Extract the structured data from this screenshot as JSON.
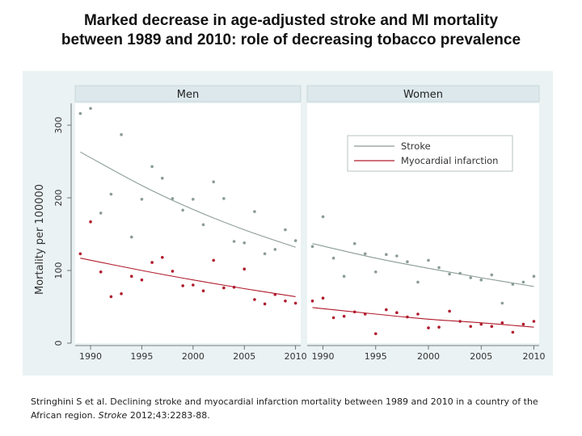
{
  "title": {
    "line1": "Marked decrease in age-adjusted stroke and MI mortality",
    "line2": "between 1989 and 2010: role of decreasing tobacco prevalence"
  },
  "citation": {
    "authors": "Stringhini S et al. Declining stroke and myocardial infarction mortality between 1989 and 2010 in a country of the African region.",
    "journal": "Stroke",
    "ref": "2012;43:2283-88."
  },
  "colors": {
    "stroke": "#8a9c98",
    "mi": "#b01a2c",
    "panel_background": "#eaf2f3",
    "strip_background": "#dce8ec",
    "plot_background": "#ffffff"
  },
  "chart_data": {
    "type": "scatter",
    "ylabel": "Mortality per 100000",
    "xlim": [
      1988.5,
      2010.5
    ],
    "ylim": [
      0,
      330
    ],
    "x_ticks": [
      1990,
      1995,
      2000,
      2005,
      2010
    ],
    "y_ticks": [
      0,
      100,
      200,
      300
    ],
    "grid": false,
    "legend": {
      "position": "top-right of Women panel",
      "entries": [
        "Stroke",
        "Myocardial infarction"
      ]
    },
    "panels": [
      {
        "name": "Men",
        "series": [
          {
            "name": "Stroke",
            "points": [
              [
                1989,
                316
              ],
              [
                1990,
                323
              ],
              [
                1991,
                179
              ],
              [
                1992,
                205
              ],
              [
                1993,
                287
              ],
              [
                1994,
                146
              ],
              [
                1995,
                198
              ],
              [
                1996,
                243
              ],
              [
                1997,
                227
              ],
              [
                1998,
                199
              ],
              [
                1999,
                183
              ],
              [
                2000,
                198
              ],
              [
                2001,
                163
              ],
              [
                2002,
                222
              ],
              [
                2003,
                199
              ],
              [
                2004,
                140
              ],
              [
                2005,
                138
              ],
              [
                2006,
                181
              ],
              [
                2007,
                123
              ],
              [
                2008,
                129
              ],
              [
                2009,
                156
              ],
              [
                2010,
                141
              ]
            ],
            "trend": [
              [
                1989,
                263
              ],
              [
                1995,
                217
              ],
              [
                2000,
                184
              ],
              [
                2005,
                156
              ],
              [
                2010,
                132
              ]
            ]
          },
          {
            "name": "Myocardial infarction",
            "points": [
              [
                1989,
                123
              ],
              [
                1990,
                167
              ],
              [
                1991,
                98
              ],
              [
                1992,
                64
              ],
              [
                1993,
                68
              ],
              [
                1994,
                92
              ],
              [
                1995,
                87
              ],
              [
                1996,
                111
              ],
              [
                1997,
                118
              ],
              [
                1998,
                99
              ],
              [
                1999,
                79
              ],
              [
                2000,
                80
              ],
              [
                2001,
                72
              ],
              [
                2002,
                114
              ],
              [
                2003,
                76
              ],
              [
                2004,
                77
              ],
              [
                2005,
                102
              ],
              [
                2006,
                60
              ],
              [
                2007,
                54
              ],
              [
                2008,
                67
              ],
              [
                2009,
                58
              ],
              [
                2010,
                55
              ]
            ],
            "trend": [
              [
                1989,
                117
              ],
              [
                1995,
                100
              ],
              [
                2000,
                87
              ],
              [
                2005,
                75
              ],
              [
                2010,
                64
              ]
            ]
          }
        ]
      },
      {
        "name": "Women",
        "series": [
          {
            "name": "Stroke",
            "points": [
              [
                1989,
                133
              ],
              [
                1990,
                174
              ],
              [
                1991,
                117
              ],
              [
                1992,
                92
              ],
              [
                1993,
                137
              ],
              [
                1994,
                123
              ],
              [
                1995,
                98
              ],
              [
                1996,
                122
              ],
              [
                1997,
                120
              ],
              [
                1998,
                112
              ],
              [
                1999,
                84
              ],
              [
                2000,
                114
              ],
              [
                2001,
                104
              ],
              [
                2002,
                95
              ],
              [
                2003,
                96
              ],
              [
                2004,
                90
              ],
              [
                2005,
                87
              ],
              [
                2006,
                94
              ],
              [
                2007,
                55
              ],
              [
                2008,
                81
              ],
              [
                2009,
                84
              ],
              [
                2010,
                92
              ]
            ],
            "trend": [
              [
                1989,
                137
              ],
              [
                1995,
                117
              ],
              [
                2000,
                103
              ],
              [
                2005,
                90
              ],
              [
                2010,
                78
              ]
            ]
          },
          {
            "name": "Myocardial infarction",
            "points": [
              [
                1989,
                58
              ],
              [
                1990,
                62
              ],
              [
                1991,
                35
              ],
              [
                1992,
                37
              ],
              [
                1993,
                43
              ],
              [
                1994,
                40
              ],
              [
                1995,
                13
              ],
              [
                1996,
                46
              ],
              [
                1997,
                42
              ],
              [
                1998,
                36
              ],
              [
                1999,
                40
              ],
              [
                2000,
                21
              ],
              [
                2001,
                22
              ],
              [
                2002,
                44
              ],
              [
                2003,
                30
              ],
              [
                2004,
                23
              ],
              [
                2005,
                26
              ],
              [
                2006,
                23
              ],
              [
                2007,
                28
              ],
              [
                2008,
                15
              ],
              [
                2009,
                26
              ],
              [
                2010,
                30
              ]
            ],
            "trend": [
              [
                1989,
                49
              ],
              [
                1995,
                40
              ],
              [
                2000,
                33
              ],
              [
                2005,
                28
              ],
              [
                2010,
                22
              ]
            ]
          }
        ]
      }
    ]
  }
}
